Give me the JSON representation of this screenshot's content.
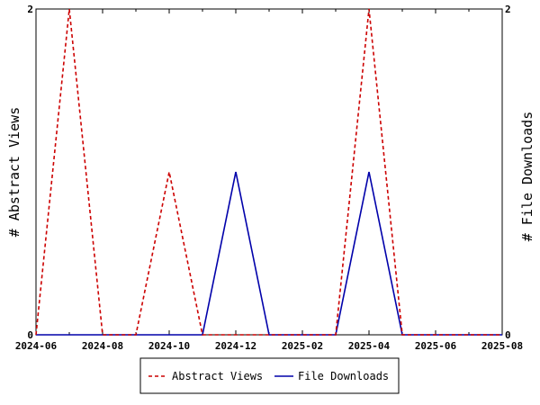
{
  "chart_data": {
    "type": "line",
    "x_ticks": [
      "2024-06",
      "2024-08",
      "2024-10",
      "2024-12",
      "2025-02",
      "2025-04",
      "2025-06",
      "2025-08"
    ],
    "x": [
      "2024-06",
      "2024-07",
      "2024-08",
      "2024-09",
      "2024-10",
      "2024-11",
      "2024-12",
      "2025-01",
      "2025-02",
      "2025-03",
      "2025-04",
      "2025-05",
      "2025-06",
      "2025-07",
      "2025-08"
    ],
    "series": [
      {
        "name": "Abstract Views",
        "axis": "left",
        "color": "#cc0000",
        "dash": "dashed",
        "values": [
          0,
          2,
          0,
          0,
          1,
          0,
          0,
          0,
          0,
          0,
          2,
          0,
          0,
          0,
          0
        ]
      },
      {
        "name": "File Downloads",
        "axis": "right",
        "color": "#0000aa",
        "dash": "solid",
        "values": [
          0,
          0,
          0,
          0,
          0,
          0,
          1,
          0,
          0,
          0,
          1,
          0,
          0,
          0,
          0
        ]
      }
    ],
    "y_left": {
      "label": "# Abstract Views",
      "ylim": [
        0,
        2
      ],
      "ticks": [
        "0",
        "2"
      ]
    },
    "y_right": {
      "label": "# File Downloads",
      "ylim": [
        0,
        2
      ],
      "ticks": [
        "0",
        "2"
      ]
    },
    "grid": false,
    "legend_position": "bottom-center"
  }
}
